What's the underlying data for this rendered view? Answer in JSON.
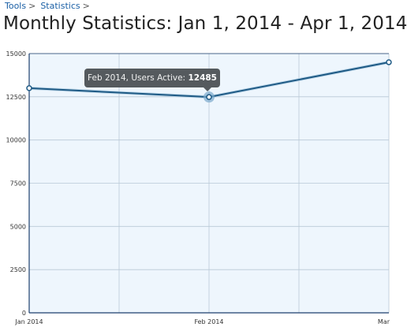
{
  "breadcrumb": {
    "items": [
      {
        "label": "Tools",
        "sep": ">"
      },
      {
        "label": "Statistics",
        "sep": ">"
      }
    ]
  },
  "page": {
    "title": "Monthly Statistics: Jan 1, 2014 - Apr 1, 2014"
  },
  "tooltip": {
    "prefix": "Feb 2014, Users Active:",
    "value": "12485"
  },
  "colors": {
    "line": "#1e5a85",
    "plot_bg": "#eef6fd",
    "grid": "#b9c8d6",
    "axis": "#1c3f6e"
  },
  "chart_data": {
    "type": "line",
    "title": "",
    "xlabel": "",
    "ylabel": "",
    "categories": [
      "Jan 2014",
      "Feb 2014",
      "Mar"
    ],
    "series": [
      {
        "values": [
          13000,
          12485,
          14500
        ]
      }
    ],
    "ylim": [
      0,
      15000
    ],
    "yticks": [
      "0",
      "2500",
      "5000",
      "7500",
      "10000",
      "12500",
      "15000"
    ],
    "highlighted_point": {
      "category": "Feb 2014",
      "value": 12485
    },
    "grid": true,
    "legend": "none"
  }
}
